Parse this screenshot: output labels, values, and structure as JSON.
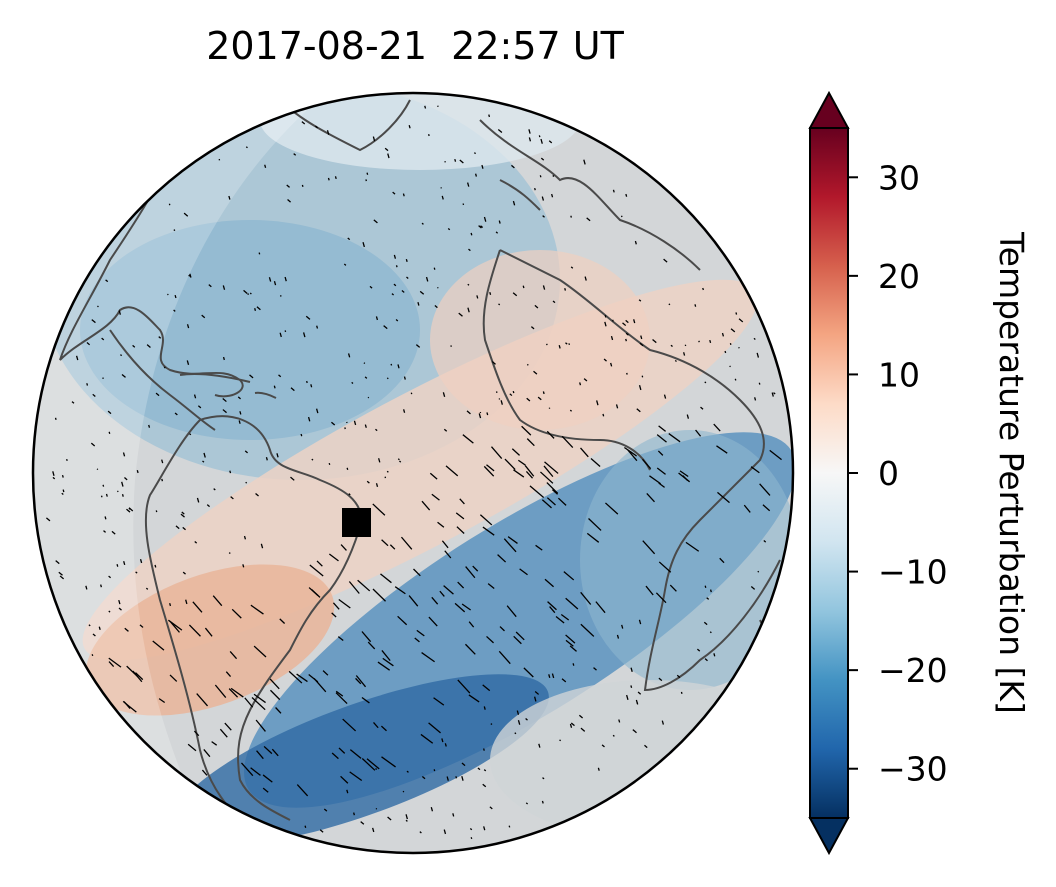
{
  "title": "2017-08-21  22:57 UT",
  "colorbar": {
    "label": "Temperature Perturbation [K]",
    "ticks": [
      {
        "value": 30,
        "label": "30"
      },
      {
        "value": 20,
        "label": "20"
      },
      {
        "value": 10,
        "label": "10"
      },
      {
        "value": 0,
        "label": "0"
      },
      {
        "value": -10,
        "label": "−10"
      },
      {
        "value": -20,
        "label": "−20"
      },
      {
        "value": -30,
        "label": "−30"
      }
    ],
    "range": [
      -35,
      35
    ],
    "extend": "both",
    "colormap": "RdBu_r",
    "colors": [
      "#053061",
      "#2166ac",
      "#4393c3",
      "#92c5de",
      "#d1e5f0",
      "#f7f7f7",
      "#fddbc7",
      "#f4a582",
      "#d6604d",
      "#b2182b",
      "#67001f"
    ]
  },
  "map": {
    "projection": "orthographic",
    "coastline_color": "#444444",
    "marker": {
      "shape": "square",
      "color": "#000000",
      "region": "eastern Brazil"
    },
    "features": [
      "coastlines",
      "temperature perturbation field",
      "wind vectors",
      "terminator shading"
    ]
  }
}
